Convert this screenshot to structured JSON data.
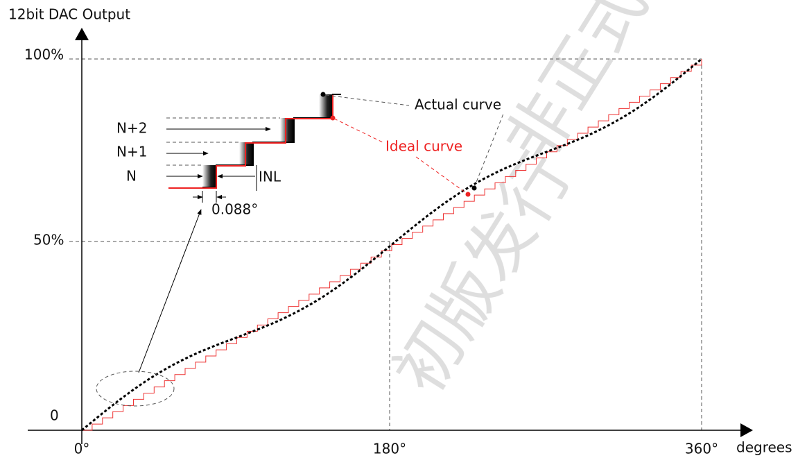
{
  "axes": {
    "y_title": "12bit DAC Output",
    "y_labels": [
      "100%",
      "50%",
      "0"
    ],
    "x_labels": [
      "0°",
      "180°",
      "360°"
    ],
    "x_title": "degrees"
  },
  "inset": {
    "steps": [
      "N+2",
      "N+1",
      "N"
    ],
    "inl": "INL",
    "step_width": "0.088°"
  },
  "callouts": {
    "actual": "Actual curve",
    "ideal": "Ideal curve"
  },
  "watermark": [
    "初版发行",
    "非正式"
  ]
}
